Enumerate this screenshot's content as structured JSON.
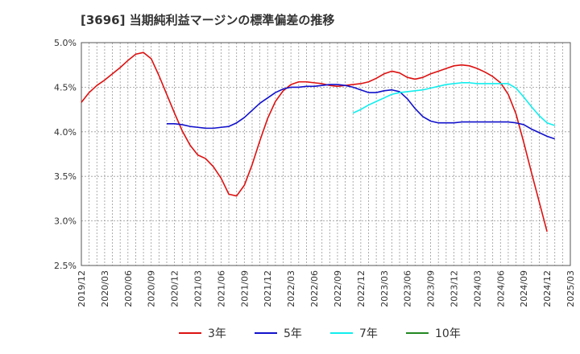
{
  "chart_data": {
    "type": "line",
    "title": "[3696]  当期純利益マージンの標準偏差の推移",
    "xlabel": "",
    "ylabel": "",
    "ylim": [
      2.5,
      5.0
    ],
    "y_ticks": [
      "2.5%",
      "3.0%",
      "3.5%",
      "4.0%",
      "4.5%",
      "5.0%"
    ],
    "x_ticks": [
      "2019/12",
      "2020/03",
      "2020/06",
      "2020/09",
      "2020/12",
      "2021/03",
      "2021/06",
      "2021/09",
      "2021/12",
      "2022/03",
      "2022/06",
      "2022/09",
      "2022/12",
      "2023/03",
      "2023/06",
      "2023/09",
      "2023/12",
      "2024/03",
      "2024/06",
      "2024/09",
      "2024/12",
      "2025/03"
    ],
    "grid": true,
    "legend_position": "bottom",
    "series": [
      {
        "name": "3年",
        "color": "#dd1111",
        "points": [
          [
            "2019/12",
            4.33
          ],
          [
            "2020/01",
            4.44
          ],
          [
            "2020/02",
            4.52
          ],
          [
            "2020/03",
            4.58
          ],
          [
            "2020/04",
            4.65
          ],
          [
            "2020/05",
            4.72
          ],
          [
            "2020/06",
            4.8
          ],
          [
            "2020/07",
            4.87
          ],
          [
            "2020/08",
            4.89
          ],
          [
            "2020/09",
            4.82
          ],
          [
            "2020/10",
            4.63
          ],
          [
            "2020/11",
            4.42
          ],
          [
            "2020/12",
            4.21
          ],
          [
            "2021/01",
            4.01
          ],
          [
            "2021/02",
            3.85
          ],
          [
            "2021/03",
            3.74
          ],
          [
            "2021/04",
            3.7
          ],
          [
            "2021/05",
            3.61
          ],
          [
            "2021/06",
            3.48
          ],
          [
            "2021/07",
            3.3
          ],
          [
            "2021/08",
            3.28
          ],
          [
            "2021/09",
            3.4
          ],
          [
            "2021/10",
            3.63
          ],
          [
            "2021/11",
            3.9
          ],
          [
            "2021/12",
            4.15
          ],
          [
            "2022/01",
            4.34
          ],
          [
            "2022/02",
            4.46
          ],
          [
            "2022/03",
            4.53
          ],
          [
            "2022/04",
            4.56
          ],
          [
            "2022/05",
            4.56
          ],
          [
            "2022/06",
            4.55
          ],
          [
            "2022/07",
            4.54
          ],
          [
            "2022/08",
            4.52
          ],
          [
            "2022/09",
            4.51
          ],
          [
            "2022/10",
            4.52
          ],
          [
            "2022/11",
            4.53
          ],
          [
            "2022/12",
            4.54
          ],
          [
            "2023/01",
            4.56
          ],
          [
            "2023/02",
            4.6
          ],
          [
            "2023/03",
            4.65
          ],
          [
            "2023/04",
            4.68
          ],
          [
            "2023/05",
            4.66
          ],
          [
            "2023/06",
            4.61
          ],
          [
            "2023/07",
            4.59
          ],
          [
            "2023/08",
            4.61
          ],
          [
            "2023/09",
            4.65
          ],
          [
            "2023/10",
            4.68
          ],
          [
            "2023/11",
            4.71
          ],
          [
            "2023/12",
            4.74
          ],
          [
            "2024/01",
            4.75
          ],
          [
            "2024/02",
            4.74
          ],
          [
            "2024/03",
            4.71
          ],
          [
            "2024/04",
            4.67
          ],
          [
            "2024/05",
            4.62
          ],
          [
            "2024/06",
            4.55
          ],
          [
            "2024/07",
            4.42
          ],
          [
            "2024/08",
            4.2
          ],
          [
            "2024/09",
            3.88
          ],
          [
            "2024/10",
            3.54
          ],
          [
            "2024/11",
            3.21
          ],
          [
            "2024/12",
            2.88
          ]
        ]
      },
      {
        "name": "5年",
        "color": "#1111cc",
        "points": [
          [
            "2020/11",
            4.09
          ],
          [
            "2020/12",
            4.09
          ],
          [
            "2021/01",
            4.08
          ],
          [
            "2021/02",
            4.06
          ],
          [
            "2021/03",
            4.05
          ],
          [
            "2021/04",
            4.04
          ],
          [
            "2021/05",
            4.04
          ],
          [
            "2021/06",
            4.05
          ],
          [
            "2021/07",
            4.06
          ],
          [
            "2021/08",
            4.1
          ],
          [
            "2021/09",
            4.16
          ],
          [
            "2021/10",
            4.24
          ],
          [
            "2021/11",
            4.32
          ],
          [
            "2021/12",
            4.38
          ],
          [
            "2022/01",
            4.44
          ],
          [
            "2022/02",
            4.48
          ],
          [
            "2022/03",
            4.5
          ],
          [
            "2022/04",
            4.5
          ],
          [
            "2022/05",
            4.51
          ],
          [
            "2022/06",
            4.51
          ],
          [
            "2022/07",
            4.52
          ],
          [
            "2022/08",
            4.53
          ],
          [
            "2022/09",
            4.53
          ],
          [
            "2022/10",
            4.52
          ],
          [
            "2022/11",
            4.5
          ],
          [
            "2022/12",
            4.47
          ],
          [
            "2023/01",
            4.44
          ],
          [
            "2023/02",
            4.44
          ],
          [
            "2023/03",
            4.46
          ],
          [
            "2023/04",
            4.47
          ],
          [
            "2023/05",
            4.45
          ],
          [
            "2023/06",
            4.37
          ],
          [
            "2023/07",
            4.26
          ],
          [
            "2023/08",
            4.17
          ],
          [
            "2023/09",
            4.12
          ],
          [
            "2023/10",
            4.1
          ],
          [
            "2023/11",
            4.1
          ],
          [
            "2023/12",
            4.1
          ],
          [
            "2024/01",
            4.11
          ],
          [
            "2024/02",
            4.11
          ],
          [
            "2024/03",
            4.11
          ],
          [
            "2024/04",
            4.11
          ],
          [
            "2024/05",
            4.11
          ],
          [
            "2024/06",
            4.11
          ],
          [
            "2024/07",
            4.11
          ],
          [
            "2024/08",
            4.1
          ],
          [
            "2024/09",
            4.08
          ],
          [
            "2024/10",
            4.03
          ],
          [
            "2024/11",
            3.99
          ],
          [
            "2024/12",
            3.95
          ],
          [
            "2025/01",
            3.92
          ]
        ]
      },
      {
        "name": "7年",
        "color": "#11eeee",
        "points": [
          [
            "2022/11",
            4.21
          ],
          [
            "2022/12",
            4.25
          ],
          [
            "2023/01",
            4.3
          ],
          [
            "2023/02",
            4.34
          ],
          [
            "2023/03",
            4.38
          ],
          [
            "2023/04",
            4.42
          ],
          [
            "2023/05",
            4.44
          ],
          [
            "2023/06",
            4.45
          ],
          [
            "2023/07",
            4.46
          ],
          [
            "2023/08",
            4.47
          ],
          [
            "2023/09",
            4.49
          ],
          [
            "2023/10",
            4.51
          ],
          [
            "2023/11",
            4.53
          ],
          [
            "2023/12",
            4.54
          ],
          [
            "2024/01",
            4.55
          ],
          [
            "2024/02",
            4.55
          ],
          [
            "2024/03",
            4.54
          ],
          [
            "2024/04",
            4.54
          ],
          [
            "2024/05",
            4.54
          ],
          [
            "2024/06",
            4.54
          ],
          [
            "2024/07",
            4.54
          ],
          [
            "2024/08",
            4.49
          ],
          [
            "2024/09",
            4.39
          ],
          [
            "2024/10",
            4.28
          ],
          [
            "2024/11",
            4.18
          ],
          [
            "2024/12",
            4.1
          ],
          [
            "2025/01",
            4.07
          ]
        ]
      },
      {
        "name": "10年",
        "color": "#228822",
        "points": []
      }
    ]
  }
}
